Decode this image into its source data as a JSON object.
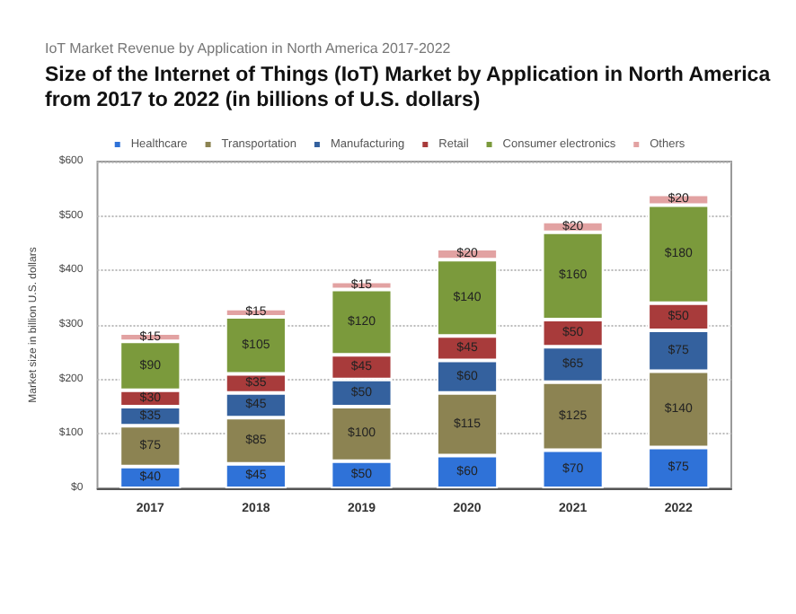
{
  "chart_data": {
    "type": "bar",
    "subtitle": "IoT Market Revenue by Application in North America 2017-2022",
    "title": "Size of the Internet of Things (IoT) Market by Application in North America from 2017 to 2022 (in billions of U.S. dollars)",
    "ylabel": "Market size in billion U.S. dollars",
    "categories": [
      "2017",
      "2018",
      "2019",
      "2020",
      "2021",
      "2022"
    ],
    "stacked": true,
    "legend": "top",
    "grid": "y",
    "ylim": [
      0,
      600
    ],
    "yticks": [
      {
        "value": 0,
        "label": "$0"
      },
      {
        "value": 100,
        "label": "$100"
      },
      {
        "value": 200,
        "label": "$200"
      },
      {
        "value": 300,
        "label": "$300"
      },
      {
        "value": 400,
        "label": "$400"
      },
      {
        "value": 500,
        "label": "$500"
      },
      {
        "value": 600,
        "label": "$600"
      }
    ],
    "series": [
      {
        "name": "Healthcare",
        "color": "#2f72d8",
        "values": [
          40,
          45,
          50,
          60,
          70,
          75
        ],
        "value_labels": [
          "$40",
          "$45",
          "$50",
          "$60",
          "$70",
          "$75"
        ]
      },
      {
        "name": "Transportation",
        "color": "#8c8352",
        "values": [
          75,
          85,
          100,
          115,
          125,
          140
        ],
        "value_labels": [
          "$75",
          "$85",
          "$100",
          "$115",
          "$125",
          "$140"
        ]
      },
      {
        "name": "Manufacturing",
        "color": "#34619e",
        "values": [
          35,
          45,
          50,
          60,
          65,
          75
        ],
        "value_labels": [
          "$35",
          "$45",
          "$50",
          "$60",
          "$65",
          "$75"
        ]
      },
      {
        "name": "Retail",
        "color": "#a83b3b",
        "values": [
          30,
          35,
          45,
          45,
          50,
          50
        ],
        "value_labels": [
          "$30",
          "$35",
          "$45",
          "$45",
          "$50",
          "$50"
        ]
      },
      {
        "name": "Consumer electronics",
        "color": "#7b9a3c",
        "values": [
          90,
          105,
          120,
          140,
          160,
          180
        ],
        "value_labels": [
          "$90",
          "$105",
          "$120",
          "$140",
          "$160",
          "$180"
        ]
      },
      {
        "name": "Others",
        "color": "#e2a2a2",
        "values": [
          15,
          15,
          15,
          20,
          20,
          20
        ],
        "value_labels": [
          "$15",
          "$15",
          "$15",
          "$20",
          "$20",
          "$20"
        ]
      }
    ]
  }
}
